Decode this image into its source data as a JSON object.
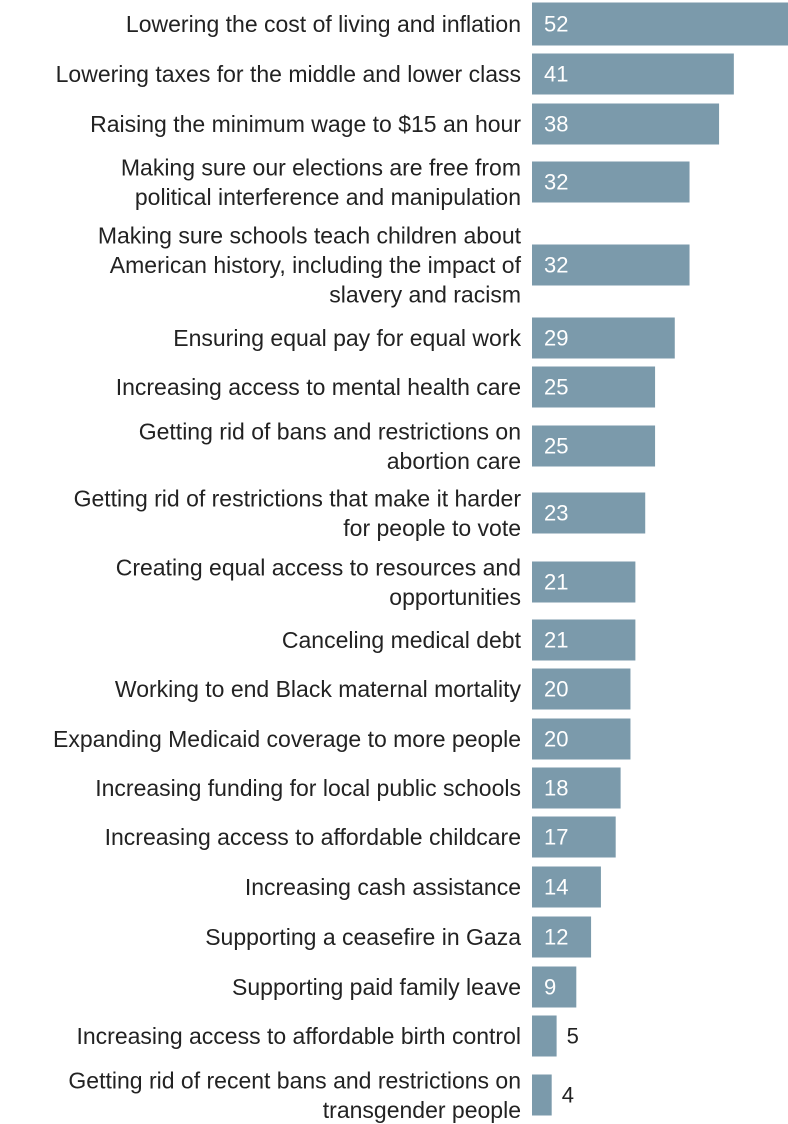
{
  "chart_data": {
    "type": "bar",
    "orientation": "horizontal",
    "categories": [
      [
        "Lowering the cost of living and inflation"
      ],
      [
        "Lowering taxes for the middle and lower class"
      ],
      [
        "Raising the minimum wage to $15 an hour"
      ],
      [
        "Making sure our elections are free from",
        "political interference and manipulation"
      ],
      [
        "Making sure schools teach children about",
        "American history, including the impact of",
        "slavery and racism"
      ],
      [
        "Ensuring equal pay for equal work"
      ],
      [
        "Increasing access to mental health care"
      ],
      [
        "Getting rid of bans and restrictions on",
        "abortion care"
      ],
      [
        "Getting rid of restrictions that make it harder",
        "for people to vote"
      ],
      [
        "Creating equal access to resources and",
        "opportunities"
      ],
      [
        "Canceling medical debt"
      ],
      [
        "Working to end Black maternal mortality"
      ],
      [
        "Expanding Medicaid coverage to more people"
      ],
      [
        "Increasing funding for local public schools"
      ],
      [
        "Increasing access to affordable childcare"
      ],
      [
        "Increasing cash assistance"
      ],
      [
        "Supporting a ceasefire in Gaza"
      ],
      [
        "Supporting paid family leave"
      ],
      [
        "Increasing access to affordable birth control"
      ],
      [
        "Getting rid of recent bans and restrictions on",
        "transgender people"
      ]
    ],
    "values": [
      52,
      41,
      38,
      32,
      32,
      29,
      25,
      25,
      23,
      21,
      21,
      20,
      20,
      18,
      17,
      14,
      12,
      9,
      5,
      4
    ],
    "bar_color": "#7b9aab",
    "xlim": [
      0,
      52
    ],
    "grid": false,
    "legend": "none"
  }
}
